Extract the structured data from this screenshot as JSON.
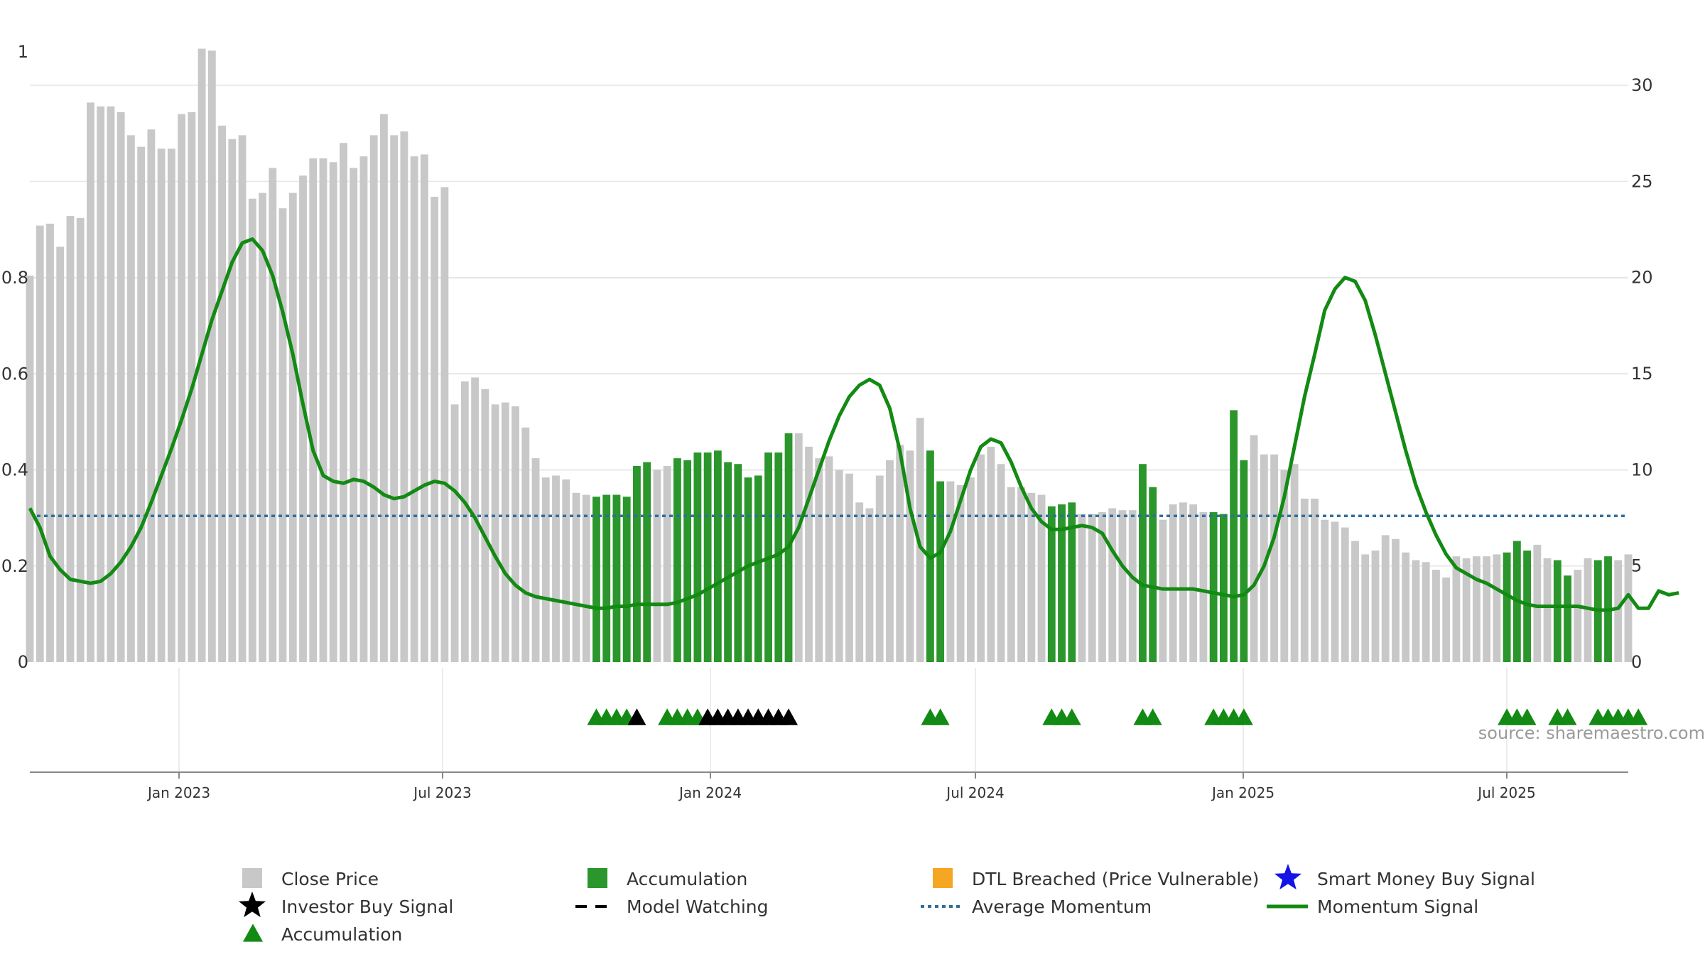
{
  "chart_data": {
    "type": "bar",
    "y_left": {
      "ticks": [
        "0",
        "0.2",
        "0.4",
        "0.6",
        "0.8",
        "1"
      ],
      "range": [
        0,
        1.2
      ]
    },
    "y_right": {
      "ticks": [
        "0",
        "5",
        "10",
        "15",
        "20",
        "25",
        "30"
      ],
      "range": [
        0,
        30
      ]
    },
    "x_axis": {
      "ticks": [
        "Jan 2023",
        "Jul 2023",
        "Jan 2024",
        "Jul 2024",
        "Jan 2025",
        "Jul 2025"
      ]
    },
    "close_price": [
      20.1,
      22.7,
      22.8,
      21.6,
      23.2,
      23.1,
      29.1,
      28.9,
      28.9,
      28.6,
      27.4,
      26.8,
      27.7,
      26.7,
      26.7,
      28.5,
      28.6,
      31.9,
      31.8,
      27.9,
      27.2,
      27.4,
      24.1,
      24.4,
      25.7,
      23.6,
      24.4,
      25.3,
      26.2,
      26.2,
      26.0,
      27.0,
      25.7,
      26.3,
      27.4,
      28.5,
      27.4,
      27.6,
      26.3,
      26.4,
      24.2,
      24.7,
      13.4,
      14.6,
      14.8,
      14.2,
      13.4,
      13.5,
      13.3,
      12.2,
      10.6,
      9.6,
      9.7,
      9.5,
      8.8,
      8.7,
      8.6,
      8.7,
      8.7,
      8.6,
      10.2,
      10.4,
      10.0,
      10.2,
      10.6,
      10.5,
      10.9,
      10.9,
      11.0,
      10.4,
      10.3,
      9.6,
      9.7,
      10.9,
      10.9,
      11.9,
      11.9,
      11.2,
      10.6,
      10.7,
      10.0,
      9.8,
      8.3,
      8.0,
      9.7,
      10.5,
      11.3,
      11.0,
      12.7,
      11.0,
      9.4,
      9.4,
      9.2,
      9.6,
      10.8,
      11.2,
      10.3,
      9.1,
      9.1,
      8.8,
      8.7,
      8.1,
      8.2,
      8.3,
      7.7,
      7.7,
      7.8,
      8.0,
      7.9,
      7.9,
      10.3,
      9.1,
      7.4,
      8.2,
      8.3,
      8.2,
      7.8,
      7.8,
      7.7,
      13.1,
      10.5,
      11.8,
      10.8,
      10.8,
      10.0,
      10.3,
      8.5,
      8.5,
      7.4,
      7.3,
      7.0,
      6.3,
      5.6,
      5.8,
      6.6,
      6.4,
      5.7,
      5.3,
      5.2,
      4.8,
      4.4,
      5.5,
      5.4,
      5.5,
      5.5,
      5.6,
      5.7,
      6.3,
      5.8,
      6.1,
      5.4,
      5.3,
      4.5,
      4.8,
      5.4,
      5.3,
      5.5,
      5.3,
      5.6
    ],
    "accumulation_bar_indices": [
      56,
      57,
      58,
      59,
      60,
      61,
      64,
      65,
      66,
      67,
      68,
      69,
      70,
      71,
      72,
      73,
      74,
      75,
      89,
      90,
      101,
      102,
      103,
      110,
      111,
      117,
      118,
      119,
      120,
      146,
      147,
      148,
      151,
      152,
      155,
      156,
      159
    ],
    "accumulation_markers_index": [
      56,
      57,
      58,
      59,
      63,
      64,
      65,
      66,
      89,
      90,
      101,
      102,
      103,
      110,
      111,
      117,
      118,
      119,
      120,
      146,
      147,
      148,
      151,
      152,
      155,
      156,
      157,
      158,
      159
    ],
    "investor_buy_signals_index": [
      60,
      67,
      68,
      69,
      70,
      71,
      72,
      73,
      74,
      75
    ],
    "momentum_signal": [
      [
        0,
        8.0
      ],
      [
        1,
        7.0
      ],
      [
        2,
        5.5
      ],
      [
        3,
        4.8
      ],
      [
        4,
        4.3
      ],
      [
        5,
        4.2
      ],
      [
        6,
        4.1
      ],
      [
        7,
        4.2
      ],
      [
        8,
        4.6
      ],
      [
        9,
        5.2
      ],
      [
        10,
        6.0
      ],
      [
        11,
        7.0
      ],
      [
        12,
        8.3
      ],
      [
        13,
        9.7
      ],
      [
        14,
        11.1
      ],
      [
        15,
        12.6
      ],
      [
        16,
        14.2
      ],
      [
        17,
        16.0
      ],
      [
        18,
        17.8
      ],
      [
        19,
        19.3
      ],
      [
        20,
        20.8
      ],
      [
        21,
        21.8
      ],
      [
        22,
        22.0
      ],
      [
        23,
        21.4
      ],
      [
        24,
        20.1
      ],
      [
        25,
        18.2
      ],
      [
        26,
        16.0
      ],
      [
        27,
        13.4
      ],
      [
        28,
        11.0
      ],
      [
        29,
        9.7
      ],
      [
        30,
        9.4
      ],
      [
        31,
        9.3
      ],
      [
        32,
        9.5
      ],
      [
        33,
        9.4
      ],
      [
        34,
        9.1
      ],
      [
        35,
        8.7
      ],
      [
        36,
        8.5
      ],
      [
        37,
        8.6
      ],
      [
        38,
        8.9
      ],
      [
        39,
        9.2
      ],
      [
        40,
        9.4
      ],
      [
        41,
        9.3
      ],
      [
        42,
        8.9
      ],
      [
        43,
        8.3
      ],
      [
        44,
        7.5
      ],
      [
        45,
        6.5
      ],
      [
        46,
        5.5
      ],
      [
        47,
        4.6
      ],
      [
        48,
        4.0
      ],
      [
        49,
        3.6
      ],
      [
        50,
        3.4
      ],
      [
        51,
        3.3
      ],
      [
        52,
        3.2
      ],
      [
        53,
        3.1
      ],
      [
        54,
        3.0
      ],
      [
        55,
        2.9
      ],
      [
        56,
        2.8
      ],
      [
        57,
        2.8
      ],
      [
        58,
        2.9
      ],
      [
        59,
        2.9
      ],
      [
        60,
        3.0
      ],
      [
        61,
        3.0
      ],
      [
        62,
        3.0
      ],
      [
        63,
        3.0
      ],
      [
        64,
        3.1
      ],
      [
        65,
        3.3
      ],
      [
        66,
        3.5
      ],
      [
        67,
        3.8
      ],
      [
        68,
        4.1
      ],
      [
        69,
        4.4
      ],
      [
        70,
        4.7
      ],
      [
        71,
        5.0
      ],
      [
        72,
        5.2
      ],
      [
        73,
        5.4
      ],
      [
        74,
        5.6
      ],
      [
        75,
        6.0
      ],
      [
        76,
        7.0
      ],
      [
        77,
        8.5
      ],
      [
        78,
        10.0
      ],
      [
        79,
        11.5
      ],
      [
        80,
        12.8
      ],
      [
        81,
        13.8
      ],
      [
        82,
        14.4
      ],
      [
        83,
        14.7
      ],
      [
        84,
        14.4
      ],
      [
        85,
        13.2
      ],
      [
        86,
        11.0
      ],
      [
        87,
        8.0
      ],
      [
        88,
        6.0
      ],
      [
        89,
        5.4
      ],
      [
        90,
        5.7
      ],
      [
        91,
        6.8
      ],
      [
        92,
        8.4
      ],
      [
        93,
        10.0
      ],
      [
        94,
        11.2
      ],
      [
        95,
        11.6
      ],
      [
        96,
        11.4
      ],
      [
        97,
        10.4
      ],
      [
        98,
        9.1
      ],
      [
        99,
        8.0
      ],
      [
        100,
        7.3
      ],
      [
        101,
        6.9
      ],
      [
        102,
        6.9
      ],
      [
        103,
        7.0
      ],
      [
        104,
        7.1
      ],
      [
        105,
        7.0
      ],
      [
        106,
        6.7
      ],
      [
        107,
        5.8
      ],
      [
        108,
        5.0
      ],
      [
        109,
        4.4
      ],
      [
        110,
        4.0
      ],
      [
        111,
        3.9
      ],
      [
        112,
        3.8
      ],
      [
        113,
        3.8
      ],
      [
        114,
        3.8
      ],
      [
        115,
        3.8
      ],
      [
        116,
        3.7
      ],
      [
        117,
        3.6
      ],
      [
        118,
        3.5
      ],
      [
        119,
        3.4
      ],
      [
        120,
        3.5
      ],
      [
        121,
        4.0
      ],
      [
        122,
        5.0
      ],
      [
        123,
        6.5
      ],
      [
        124,
        8.6
      ],
      [
        125,
        11.2
      ],
      [
        126,
        13.8
      ],
      [
        127,
        16.0
      ],
      [
        128,
        18.3
      ],
      [
        129,
        19.4
      ],
      [
        130,
        20.0
      ],
      [
        131,
        19.8
      ],
      [
        132,
        18.8
      ],
      [
        133,
        17.0
      ],
      [
        134,
        15.0
      ],
      [
        135,
        13.0
      ],
      [
        136,
        11.0
      ],
      [
        137,
        9.2
      ],
      [
        138,
        7.8
      ],
      [
        139,
        6.6
      ],
      [
        140,
        5.6
      ],
      [
        141,
        4.9
      ],
      [
        142,
        4.6
      ],
      [
        143,
        4.3
      ],
      [
        144,
        4.1
      ],
      [
        145,
        3.8
      ],
      [
        146,
        3.5
      ],
      [
        147,
        3.2
      ],
      [
        148,
        3.0
      ],
      [
        149,
        2.9
      ],
      [
        150,
        2.9
      ],
      [
        151,
        2.9
      ],
      [
        152,
        2.9
      ],
      [
        153,
        2.9
      ],
      [
        154,
        2.8
      ],
      [
        155,
        2.7
      ],
      [
        156,
        2.7
      ],
      [
        157,
        2.8
      ],
      [
        158,
        3.5
      ],
      [
        159,
        2.8
      ],
      [
        160,
        2.8
      ],
      [
        161,
        3.7
      ],
      [
        162,
        3.5
      ],
      [
        163,
        3.6
      ]
    ],
    "average_momentum": 7.6,
    "legend": {
      "close_price": "Close Price",
      "accumulation_bar": "Accumulation",
      "dtl_breached": "DTL Breached (Price Vulnerable)",
      "smart_money": "Smart Money Buy Signal",
      "investor_buy": "Investor Buy Signal",
      "model_watching": "Model Watching",
      "average_momentum": "Average Momentum",
      "momentum_signal": "Momentum Signal",
      "accumulation_marker": "Accumulation"
    },
    "source": "source: sharemaestro.com",
    "colors": {
      "close_price": "#c8c8c8",
      "accumulation": "#2b962b",
      "accumulation_marker": "#138a13",
      "investor_buy": "#000000",
      "dtl_breached": "#f5a623",
      "smart_money": "#1414e6",
      "average_momentum": "#2f6f9f",
      "momentum_signal": "#138a13",
      "grid": "#e6e6e6",
      "axis": "#888888",
      "text": "#333333"
    }
  }
}
